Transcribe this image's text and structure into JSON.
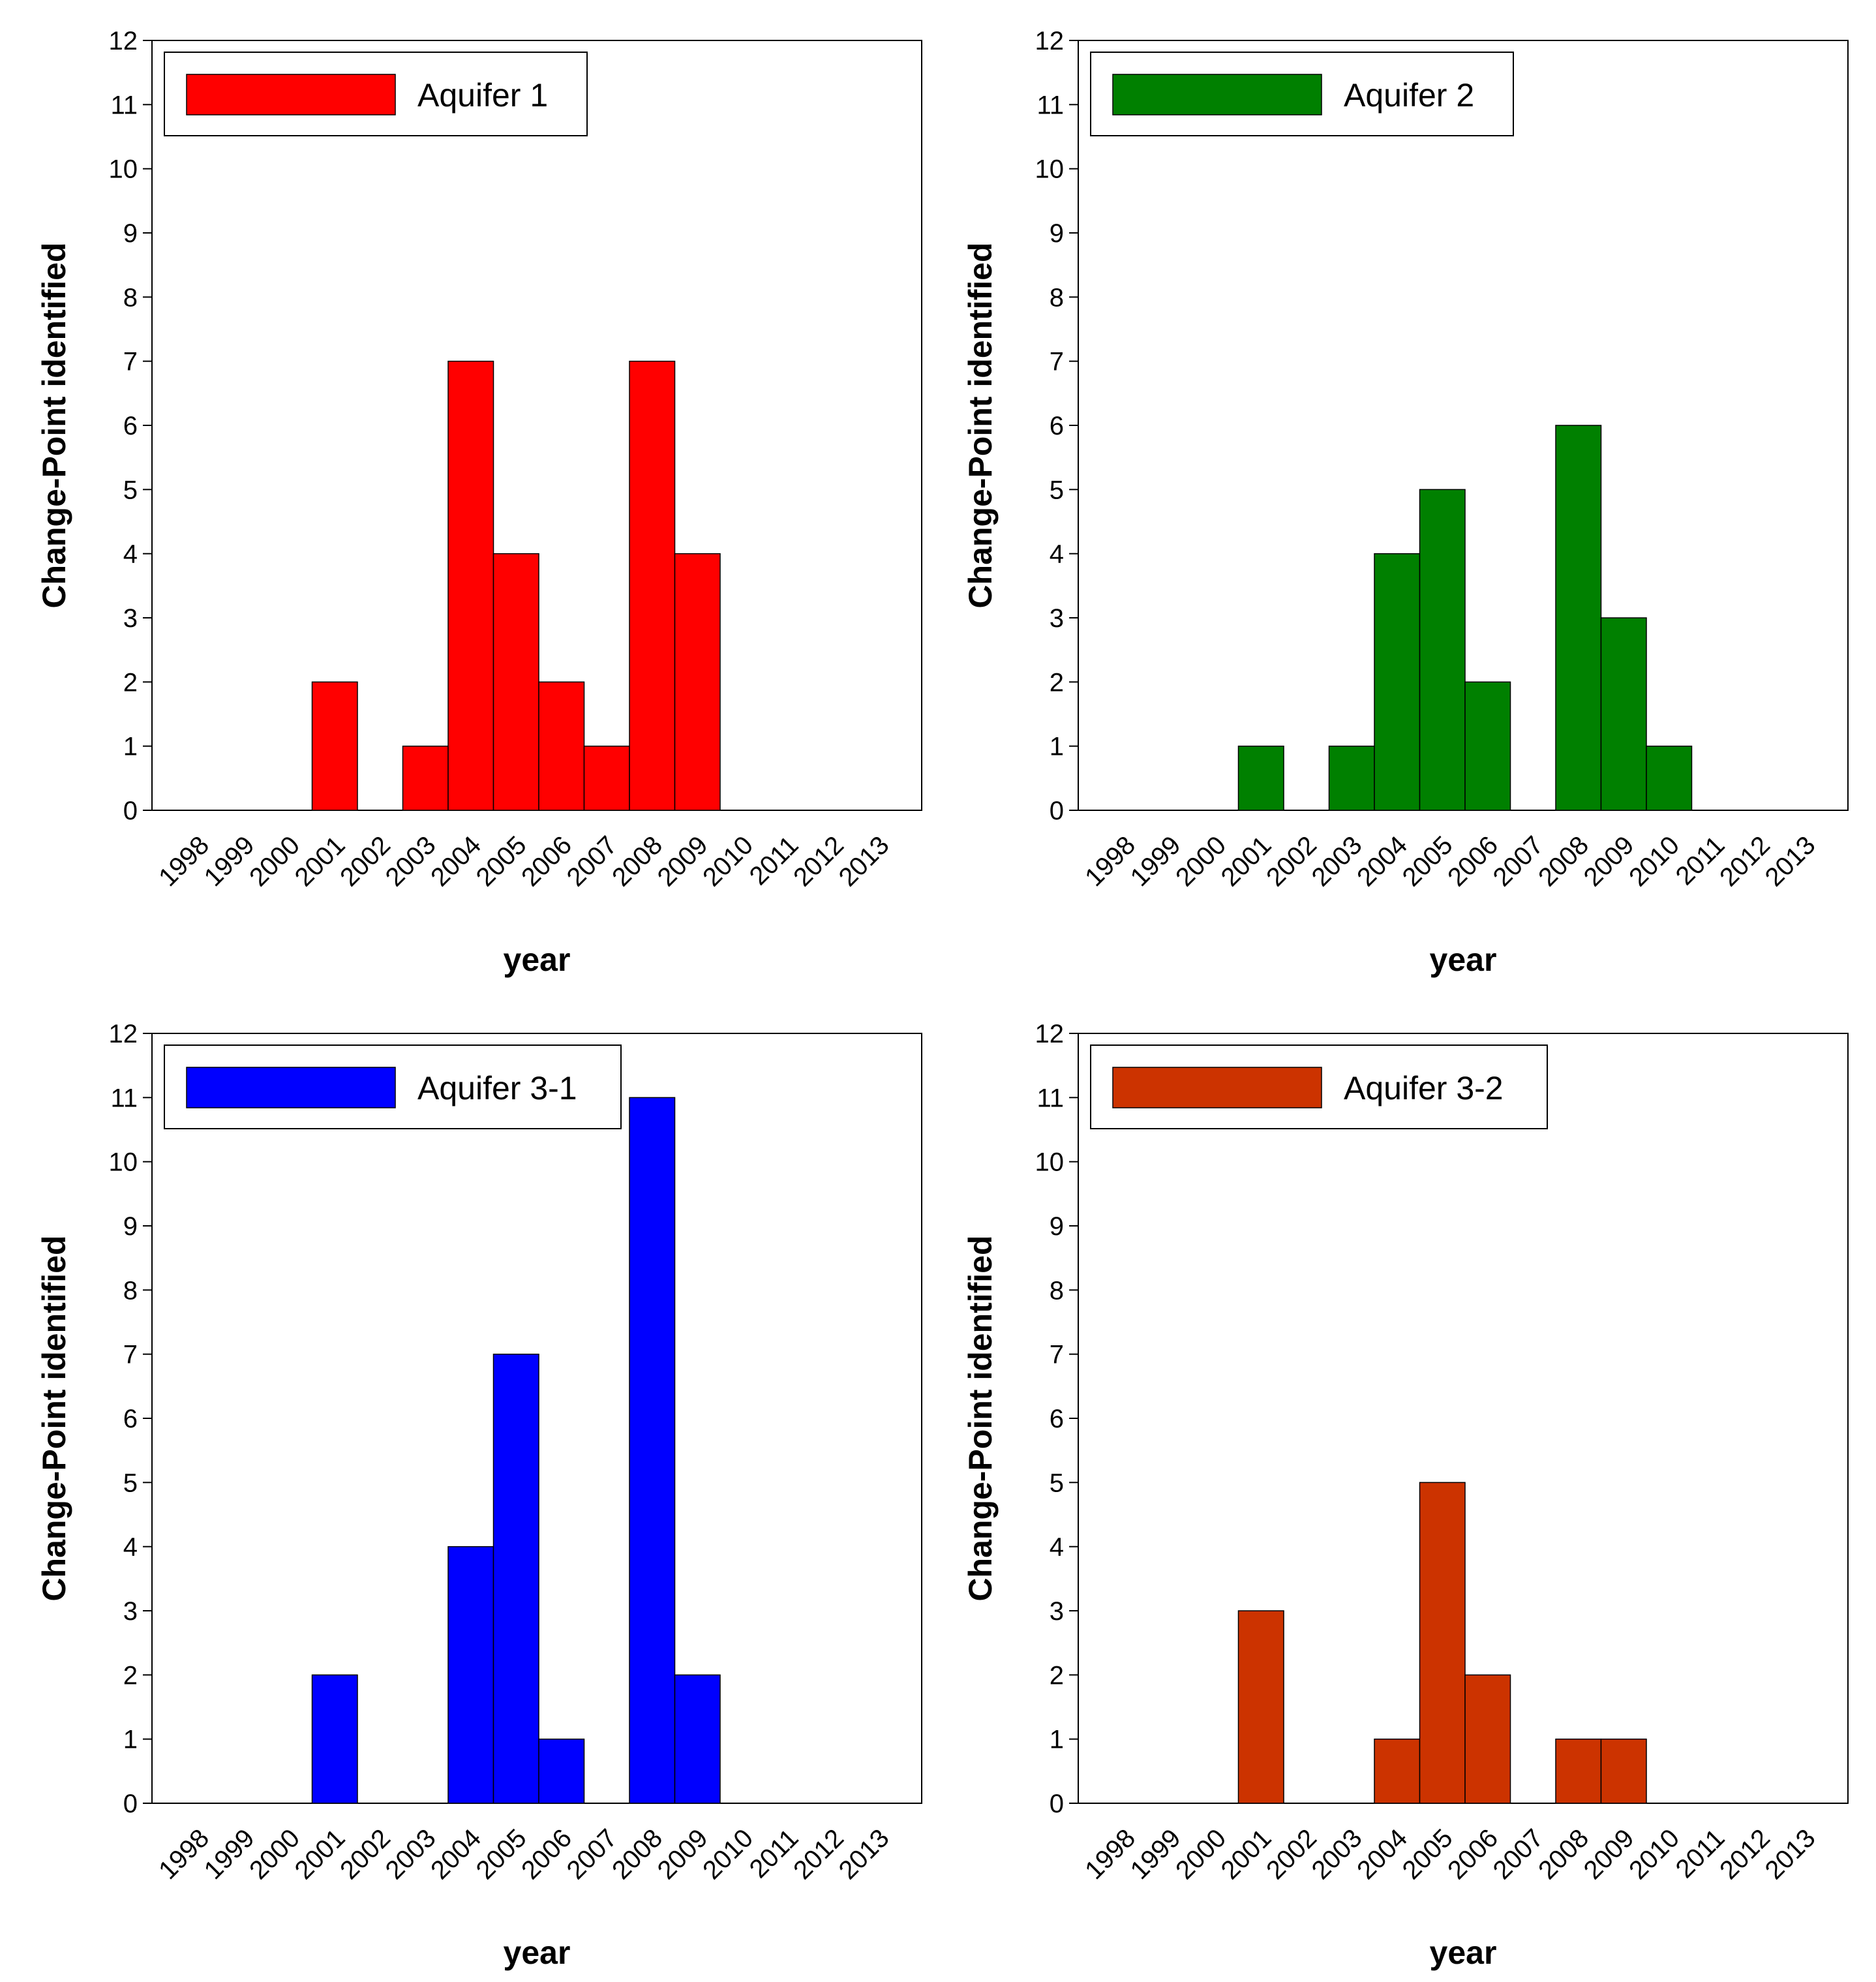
{
  "chart_data": [
    {
      "type": "bar",
      "title": "",
      "legend": "Aquifer 1",
      "color": "#ff0000",
      "xlabel": "year",
      "ylabel": "Change-Point identified",
      "ylim": [
        0,
        12
      ],
      "yticks": [
        "0",
        "1",
        "2",
        "3",
        "4",
        "5",
        "6",
        "7",
        "8",
        "9",
        "10",
        "11",
        "12"
      ],
      "categories": [
        "1998",
        "1999",
        "2000",
        "2001",
        "2002",
        "2003",
        "2004",
        "2005",
        "2006",
        "2007",
        "2008",
        "2009",
        "2010",
        "2011",
        "2012",
        "2013"
      ],
      "values": [
        0,
        0,
        0,
        2,
        0,
        1,
        7,
        4,
        2,
        1,
        7,
        4,
        0,
        0,
        0,
        0
      ]
    },
    {
      "type": "bar",
      "title": "",
      "legend": "Aquifer 2",
      "color": "#008000",
      "xlabel": "year",
      "ylabel": "Change-Point identified",
      "ylim": [
        0,
        12
      ],
      "yticks": [
        "0",
        "1",
        "2",
        "3",
        "4",
        "5",
        "6",
        "7",
        "8",
        "9",
        "10",
        "11",
        "12"
      ],
      "categories": [
        "1998",
        "1999",
        "2000",
        "2001",
        "2002",
        "2003",
        "2004",
        "2005",
        "2006",
        "2007",
        "2008",
        "2009",
        "2010",
        "2011",
        "2012",
        "2013"
      ],
      "values": [
        0,
        0,
        0,
        1,
        0,
        1,
        4,
        5,
        2,
        0,
        6,
        3,
        1,
        0,
        0,
        0
      ]
    },
    {
      "type": "bar",
      "title": "",
      "legend": "Aquifer 3-1",
      "color": "#0000ff",
      "xlabel": "year",
      "ylabel": "Change-Point identified",
      "ylim": [
        0,
        12
      ],
      "yticks": [
        "0",
        "1",
        "2",
        "3",
        "4",
        "5",
        "6",
        "7",
        "8",
        "9",
        "10",
        "11",
        "12"
      ],
      "categories": [
        "1998",
        "1999",
        "2000",
        "2001",
        "2002",
        "2003",
        "2004",
        "2005",
        "2006",
        "2007",
        "2008",
        "2009",
        "2010",
        "2011",
        "2012",
        "2013"
      ],
      "values": [
        0,
        0,
        0,
        2,
        0,
        0,
        4,
        7,
        1,
        0,
        11,
        2,
        0,
        0,
        0,
        0
      ]
    },
    {
      "type": "bar",
      "title": "",
      "legend": "Aquifer 3-2",
      "color": "#cc3300",
      "xlabel": "year",
      "ylabel": "Change-Point identified",
      "ylim": [
        0,
        12
      ],
      "yticks": [
        "0",
        "1",
        "2",
        "3",
        "4",
        "5",
        "6",
        "7",
        "8",
        "9",
        "10",
        "11",
        "12"
      ],
      "categories": [
        "1998",
        "1999",
        "2000",
        "2001",
        "2002",
        "2003",
        "2004",
        "2005",
        "2006",
        "2007",
        "2008",
        "2009",
        "2010",
        "2011",
        "2012",
        "2013"
      ],
      "values": [
        0,
        0,
        0,
        3,
        0,
        0,
        1,
        5,
        2,
        0,
        1,
        1,
        0,
        0,
        0,
        0
      ]
    }
  ]
}
